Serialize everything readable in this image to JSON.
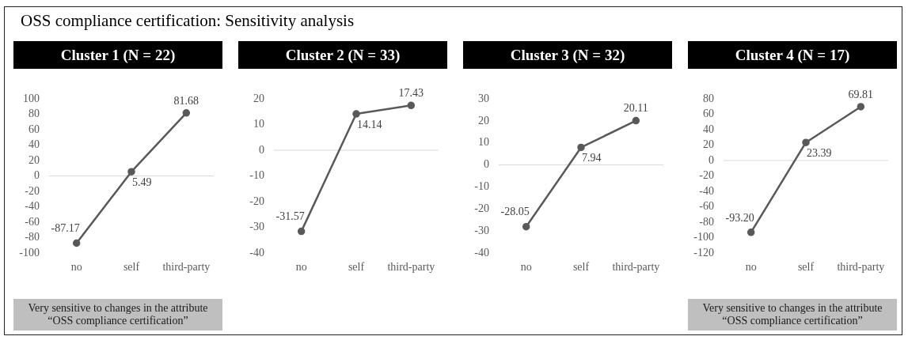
{
  "chart_data": [
    {
      "type": "other",
      "title": "OSS compliance certification: Sensitivity analysis"
    },
    {
      "type": "line",
      "title": "Cluster 1 (N = 22)",
      "categories": [
        "no",
        "self",
        "third-party"
      ],
      "values": [
        -87.17,
        5.49,
        81.68
      ],
      "color": "#595959",
      "marker": "circle",
      "ylim": [
        -100,
        100
      ],
      "yticks": [
        -100,
        -80,
        -60,
        -40,
        -20,
        0,
        20,
        40,
        60,
        80,
        100
      ],
      "data_labels": true,
      "ref_lines": [
        {
          "axis": "y",
          "value": 0,
          "color": "#d9d9d9"
        }
      ],
      "annotations": [
        "Very sensitive to changes in the attribute “OSS compliance certification”"
      ]
    },
    {
      "type": "line",
      "title": "Cluster 2 (N = 33)",
      "categories": [
        "no",
        "self",
        "third-party"
      ],
      "values": [
        -31.57,
        14.14,
        17.43
      ],
      "color": "#595959",
      "marker": "circle",
      "ylim": [
        -40,
        20
      ],
      "yticks": [
        -40,
        -30,
        -20,
        -10,
        0,
        10,
        20
      ],
      "data_labels": true,
      "ref_lines": [
        {
          "axis": "y",
          "value": 0,
          "color": "#d9d9d9"
        }
      ]
    },
    {
      "type": "line",
      "title": "Cluster 3 (N = 32)",
      "categories": [
        "no",
        "self",
        "third-party"
      ],
      "values": [
        -28.05,
        7.94,
        20.11
      ],
      "color": "#595959",
      "marker": "circle",
      "ylim": [
        -40,
        30
      ],
      "yticks": [
        -40,
        -30,
        -20,
        -10,
        0,
        10,
        20,
        30
      ],
      "data_labels": true,
      "ref_lines": [
        {
          "axis": "y",
          "value": 0,
          "color": "#d9d9d9"
        }
      ]
    },
    {
      "type": "line",
      "title": "Cluster 4 (N = 17)",
      "categories": [
        "no",
        "self",
        "third-party"
      ],
      "values": [
        -93.2,
        23.39,
        69.81
      ],
      "value_labels": [
        "-93.20",
        "23.39",
        "69.81"
      ],
      "color": "#595959",
      "marker": "circle",
      "ylim": [
        -120,
        80
      ],
      "yticks": [
        -120,
        -100,
        -80,
        -60,
        -40,
        -20,
        0,
        20,
        40,
        60,
        80
      ],
      "ref_lines": [
        {
          "axis": "y",
          "value": 0,
          "color": "#d9d9d9"
        }
      ],
      "annotations": [
        "Very sensitive to changes in the attribute “OSS compliance certification”"
      ]
    }
  ]
}
